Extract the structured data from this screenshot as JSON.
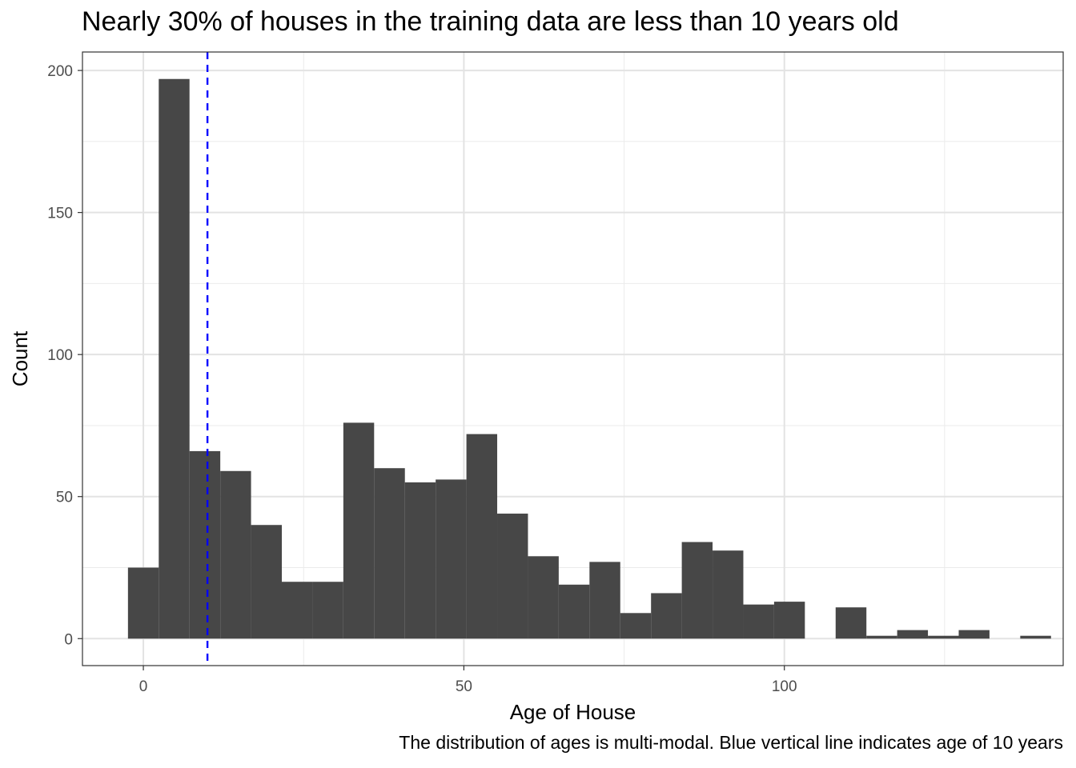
{
  "chart_data": {
    "type": "bar",
    "title": "Nearly 30% of houses in the training data are less than 10 years old",
    "caption": "The distribution of ages is multi-modal. Blue vertical line indicates age of 10 years",
    "xlabel": "Age of House",
    "ylabel": "Count",
    "bin_width": 4.8,
    "bin_centers": [
      0.0,
      4.8,
      9.6,
      14.4,
      19.2,
      24.0,
      28.8,
      33.6,
      38.4,
      43.2,
      48.0,
      52.8,
      57.6,
      62.4,
      67.2,
      72.0,
      76.8,
      81.6,
      86.4,
      91.2,
      96.0,
      100.8,
      105.6,
      110.4,
      115.2,
      120.0,
      124.8,
      129.6,
      134.4,
      139.2
    ],
    "counts": [
      25,
      197,
      66,
      59,
      40,
      20,
      20,
      76,
      60,
      55,
      56,
      72,
      44,
      29,
      19,
      27,
      9,
      16,
      34,
      31,
      12,
      13,
      0,
      11,
      1,
      3,
      1,
      3,
      0,
      1
    ],
    "xlim": [
      -9.5,
      143.5
    ],
    "ylim": [
      -9.5,
      206.5
    ],
    "x_ticks": [
      0,
      50,
      100
    ],
    "y_ticks": [
      0,
      50,
      100,
      150,
      200
    ],
    "x_minor_ticks": [
      25,
      75,
      125
    ],
    "y_minor_ticks": [
      25,
      75,
      125,
      175
    ],
    "reference_line": {
      "x": 10,
      "style": "dashed",
      "color": "#0000ff"
    },
    "bar_color": "#474747",
    "grid": true
  }
}
